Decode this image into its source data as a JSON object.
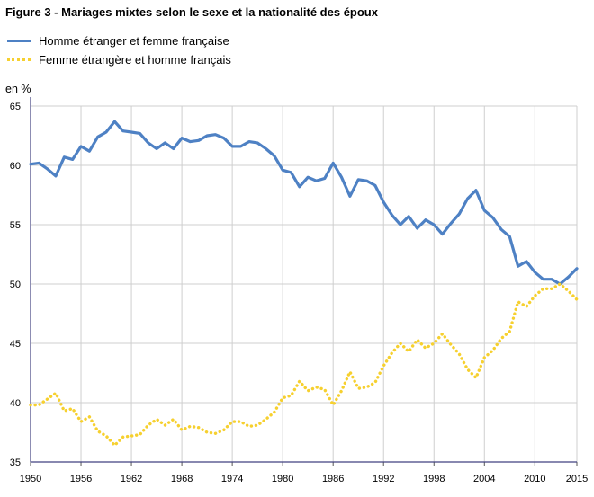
{
  "chart_data": {
    "type": "line",
    "title": "Figure 3 - Mariages mixtes selon le sexe et la nationalité des époux",
    "ylabel": "en %",
    "xlabel": "",
    "xlim": [
      1950,
      2015
    ],
    "ylim": [
      35,
      65
    ],
    "x_ticks": [
      "1950",
      "1956",
      "1962",
      "1968",
      "1974",
      "1980",
      "1986",
      "1992",
      "1998",
      "2004",
      "2010",
      "2015"
    ],
    "y_ticks": [
      "35",
      "40",
      "45",
      "50",
      "55",
      "60",
      "65"
    ],
    "grid": true,
    "legend_position": "top-left",
    "x": [
      1950,
      1951,
      1952,
      1953,
      1954,
      1955,
      1956,
      1957,
      1958,
      1959,
      1960,
      1961,
      1962,
      1963,
      1964,
      1965,
      1966,
      1967,
      1968,
      1969,
      1970,
      1971,
      1972,
      1973,
      1974,
      1975,
      1976,
      1977,
      1978,
      1979,
      1980,
      1981,
      1982,
      1983,
      1984,
      1985,
      1986,
      1987,
      1988,
      1989,
      1990,
      1991,
      1992,
      1993,
      1994,
      1995,
      1996,
      1997,
      1998,
      1999,
      2000,
      2001,
      2002,
      2003,
      2004,
      2005,
      2006,
      2007,
      2008,
      2009,
      2010,
      2011,
      2012,
      2013,
      2014,
      2015
    ],
    "series": [
      {
        "name": "Homme étranger et femme française",
        "color": "#4e81c4",
        "style": "solid",
        "values": [
          60.1,
          60.2,
          59.7,
          59.1,
          60.7,
          60.5,
          61.6,
          61.2,
          62.4,
          62.8,
          63.7,
          62.9,
          62.8,
          62.7,
          61.9,
          61.4,
          61.9,
          61.4,
          62.3,
          62.0,
          62.1,
          62.5,
          62.6,
          62.3,
          61.6,
          61.6,
          62.0,
          61.9,
          61.4,
          60.8,
          59.6,
          59.4,
          58.2,
          59.0,
          58.7,
          58.9,
          60.2,
          59.0,
          57.4,
          58.8,
          58.7,
          58.3,
          56.9,
          55.8,
          55.0,
          55.7,
          54.7,
          55.4,
          55.0,
          54.2,
          55.1,
          55.9,
          57.2,
          57.9,
          56.2,
          55.6,
          54.6,
          54.0,
          51.5,
          51.9,
          51.0,
          50.4,
          50.4,
          50.0,
          50.6,
          51.3
        ]
      },
      {
        "name": "Femme étrangère et homme français",
        "color": "#f6d02f",
        "style": "dotted",
        "values": [
          39.8,
          39.8,
          40.3,
          40.8,
          39.3,
          39.5,
          38.4,
          38.8,
          37.6,
          37.2,
          36.4,
          37.1,
          37.2,
          37.3,
          38.1,
          38.6,
          38.1,
          38.6,
          37.7,
          38.0,
          37.9,
          37.5,
          37.4,
          37.7,
          38.4,
          38.4,
          38.0,
          38.1,
          38.6,
          39.2,
          40.4,
          40.6,
          41.8,
          41.0,
          41.3,
          41.1,
          39.8,
          41.0,
          42.6,
          41.2,
          41.3,
          41.7,
          43.1,
          44.2,
          45.0,
          44.3,
          45.3,
          44.6,
          45.0,
          45.8,
          44.9,
          44.1,
          42.8,
          42.1,
          43.8,
          44.4,
          45.4,
          46.0,
          48.5,
          48.1,
          49.0,
          49.6,
          49.6,
          50.0,
          49.4,
          48.7
        ]
      }
    ]
  }
}
